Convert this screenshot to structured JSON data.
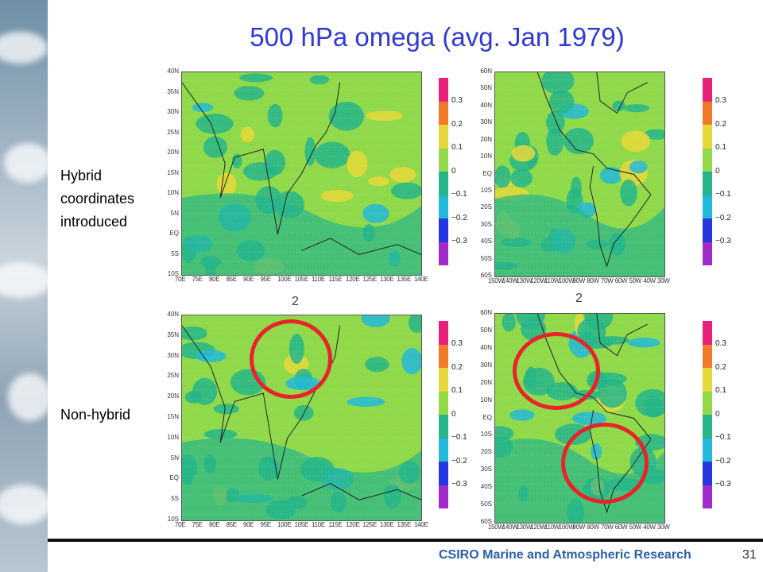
{
  "title": "500 hPa omega (avg. Jan 1979)",
  "rows": [
    {
      "label_lines": [
        "Hybrid",
        "coordinates",
        "introduced"
      ]
    },
    {
      "label_lines": [
        "Non-hybrid"
      ]
    }
  ],
  "panel_number": "2",
  "asia_axes": {
    "lat_labels": [
      "40N",
      "35N",
      "30N",
      "25N",
      "20N",
      "15N",
      "10N",
      "5N",
      "EQ",
      "5S",
      "10S"
    ],
    "lon_labels": [
      "70E",
      "75E",
      "80E",
      "85E",
      "90E",
      "95E",
      "100E",
      "105E",
      "110E",
      "115E",
      "120E",
      "125E",
      "130E",
      "135E",
      "140E"
    ]
  },
  "america_axes": {
    "lat_labels": [
      "60N",
      "50N",
      "40N",
      "30N",
      "20N",
      "10N",
      "EQ",
      "10S",
      "20S",
      "30S",
      "40S",
      "50S",
      "60S"
    ],
    "lon_labels": [
      "150W",
      "140W",
      "130W",
      "120W",
      "110W",
      "100W",
      "90W",
      "80W",
      "70W",
      "60W",
      "50W",
      "40W",
      "30W"
    ]
  },
  "colorbar": {
    "labels": [
      "0.3",
      "0.2",
      "0.1",
      "0",
      "−0.1",
      "−0.2",
      "−0.3"
    ],
    "colors": [
      "#e8207a",
      "#f07a2a",
      "#e6d83a",
      "#8fd94a",
      "#26b58a",
      "#22b8d8",
      "#2636e0",
      "#a12ac8"
    ]
  },
  "footer": "CSIRO Marine and Atmospheric Research",
  "page_number": "31"
}
